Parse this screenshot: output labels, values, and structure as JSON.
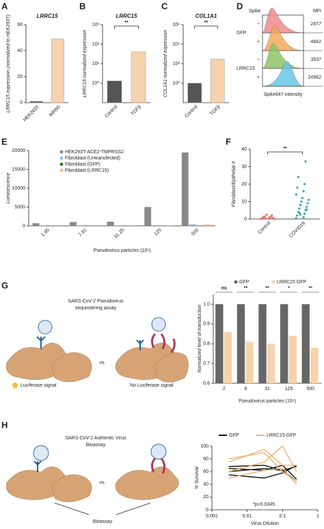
{
  "panel_labels": [
    "A",
    "B",
    "C",
    "D",
    "E",
    "F",
    "G",
    "H"
  ],
  "chart_data": [
    {
      "type": "bar",
      "title": "LRRC15",
      "ylabel": "LRRC15 expression (normalized to HEK293T)",
      "categories": [
        "HEK293T",
        "IMR90"
      ],
      "values": [
        1,
        49
      ],
      "colors": [
        "#555555",
        "#f6d2ad"
      ],
      "ylim": [
        0,
        60
      ],
      "yticks": [
        0,
        20,
        40,
        60
      ]
    },
    {
      "type": "bar",
      "title": "LRRC15",
      "ylabel": "LRRC15 normalized expression",
      "log_scale": true,
      "categories": [
        "Control",
        "TGFβ"
      ],
      "values": [
        1.3,
        40
      ],
      "colors": [
        "#555555",
        "#f6d2ad"
      ],
      "ylim": [
        0.1,
        1000
      ],
      "yticks": [
        {
          "value": 1,
          "label": "10⁰"
        },
        {
          "value": 10,
          "label": "10¹"
        },
        {
          "value": 100,
          "label": "10²"
        },
        {
          "value": 1000,
          "label": "10³"
        }
      ],
      "annotation": "**"
    },
    {
      "type": "bar",
      "title": "COL1A1",
      "ylabel": "COL1A1 normalized expression",
      "log_scale": true,
      "categories": [
        "Control",
        "TGFβ"
      ],
      "values": [
        1,
        300
      ],
      "colors": [
        "#555555",
        "#f6d2ad"
      ],
      "ylim": [
        0.01,
        1000000
      ],
      "yticks": [
        {
          "value": 1,
          "label": "10⁰"
        },
        {
          "value": 100,
          "label": "10²"
        },
        {
          "value": 10000,
          "label": "10⁴"
        },
        {
          "value": 1000000,
          "label": "10⁶"
        }
      ],
      "annotation": "**"
    },
    {
      "type": "flow",
      "header": [
        "Spike",
        "MFI"
      ],
      "xlabel": "Spike647 intensity",
      "groups": [
        {
          "name": "GFP",
          "rows": [
            {
              "sign": "−",
              "mfi": 2877,
              "color": "#ef8a8a"
            },
            {
              "sign": "+",
              "mfi": 4842,
              "color": "#f2a95a"
            }
          ]
        },
        {
          "name": "LRRC15",
          "rows": [
            {
              "sign": "−",
              "mfi": 3537,
              "color": "#8cc466"
            },
            {
              "sign": "+",
              "mfi": 24962,
              "color": "#69c6e6"
            }
          ]
        }
      ]
    },
    {
      "type": "grouped_bar",
      "ylabel": "Luminescence",
      "xlabel": "Pseudovirus particles (10⁶)",
      "categories": [
        "1.95",
        "7.81",
        "31.25",
        "125",
        "500"
      ],
      "series": [
        {
          "name": "HEK293T-ACE2-TMPRSS2",
          "color": "#888888",
          "values": [
            700,
            1000,
            1100,
            5000,
            19500
          ]
        },
        {
          "name": "Fibroblast (Untransfected)",
          "color": "#8ec3ea",
          "values": [
            20,
            30,
            40,
            200,
            450
          ]
        },
        {
          "name": "Fibroblast (GFP)",
          "color": "#2e7d32",
          "values": [
            10,
            15,
            20,
            50,
            100
          ]
        },
        {
          "name": "Fibroblast (LRRC15)",
          "color": "#f3c08a",
          "values": [
            15,
            20,
            40,
            150,
            400
          ]
        }
      ],
      "ylim": [
        0,
        20000
      ],
      "yticks": [
        0,
        5000,
        10000,
        15000,
        20000
      ]
    },
    {
      "type": "strip",
      "ylabel": "Fibroblast/Epithelial #",
      "categories": [
        "Control",
        "COVID19"
      ],
      "colors": [
        "#e8705f",
        "#2aa5b8"
      ],
      "values": [
        [
          0,
          0.2,
          0.5,
          0.8,
          1,
          1.2,
          1.5,
          2,
          0.3,
          0.6,
          2.5,
          0.1
        ],
        [
          0.5,
          1,
          2,
          3,
          4,
          5,
          6,
          7,
          8,
          9,
          10,
          11,
          12,
          14,
          16,
          18,
          20,
          24,
          33,
          3.5,
          5.5,
          2.5
        ]
      ],
      "ylim": [
        0,
        40
      ],
      "yticks": [
        0,
        10,
        20,
        30,
        40
      ],
      "annotation": "**"
    },
    {
      "type": "grouped_bar_sig",
      "ylabel": "Normalized level of transduction",
      "xlabel": "Pseudovirus particles (10⁶)",
      "categories": [
        "2",
        "8",
        "31",
        "125",
        "500"
      ],
      "series": [
        {
          "name": "GFP",
          "color": "#666666",
          "values": [
            1,
            1,
            1,
            1,
            1
          ]
        },
        {
          "name": "LRRC15 GFP",
          "color": "#f6d2ad",
          "values": [
            0.86,
            0.81,
            0.8,
            0.84,
            0.78
          ]
        }
      ],
      "annotations": [
        "ns",
        "**",
        "**",
        "*",
        "**"
      ],
      "ylim": [
        0.6,
        1.05
      ],
      "yticks": [
        0.6,
        0.7,
        0.8,
        0.9,
        {
          "value": 1,
          "label": "1.0"
        }
      ]
    },
    {
      "type": "line",
      "ylabel": "% Survival",
      "xlabel": "Virus Dilution",
      "log_x": true,
      "x": [
        0.003,
        0.03,
        0.1,
        0.25
      ],
      "series": [
        {
          "name": "GFP",
          "color": "#111111",
          "lines": [
            [
              60,
              65,
              62,
              45
            ],
            [
              65,
              62,
              70,
              48
            ],
            [
              55,
              50,
              58,
              70
            ],
            [
              68,
              70,
              62,
              68
            ]
          ]
        },
        {
          "name": "LRRC15 GFP",
          "color": "#f0b070",
          "lines": [
            [
              75,
              95,
              70,
              70
            ],
            [
              60,
              75,
              100,
              60
            ],
            [
              50,
              62,
              65,
              40
            ],
            [
              80,
              90,
              60,
              45
            ]
          ]
        }
      ],
      "xlim": [
        0.001,
        1
      ],
      "xticks": [
        0.001,
        0.01,
        0.1,
        1
      ],
      "ylim": [
        0,
        100
      ],
      "yticks": [
        0,
        20,
        40,
        60,
        80,
        100
      ],
      "annotation": "*p=0.0345"
    }
  ],
  "diagrams": {
    "g": {
      "title": [
        "SARS-CoV-2 Pseudovirus",
        "sequestering assay"
      ],
      "vs": "vs.",
      "left_caption": "Luciferase signal",
      "right_caption": "No Luciferase signal"
    },
    "h": {
      "title": [
        "SARS-CoV-2 Authentic Virus",
        "Bioassay"
      ],
      "vs": "vs.",
      "caption": "Bioassay"
    }
  }
}
